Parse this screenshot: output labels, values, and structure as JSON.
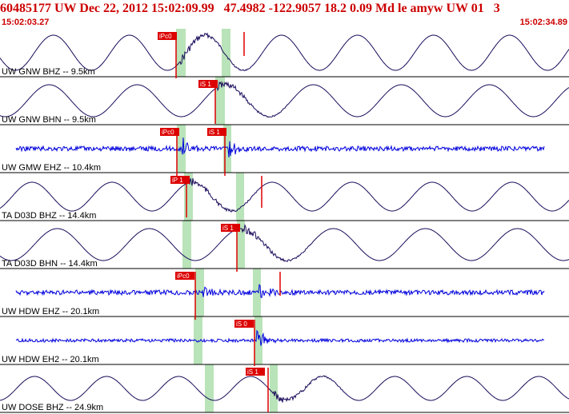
{
  "header": {
    "title": "60485177 UW Dec 22, 2012 15:02:09.99   47.4982 -122.9057 18.2 0.09 Md le amyw UW 01   3",
    "time_start": "15:02:03.27",
    "time_end": "15:02:34.89"
  },
  "colors": {
    "header_text": "#cc0000",
    "trace_dark": "#1a0a5a",
    "trace_blue": "#0000dd",
    "pick_red": "#dd0000",
    "window_green": "#b9e3b9",
    "separator": "#000000"
  },
  "traces": [
    {
      "label": "UW GNW BHZ -- 9.5km",
      "color": "dark",
      "picks": [
        {
          "text": "iPc0"
        },
        {
          "text": ""
        }
      ]
    },
    {
      "label": "UW GNW BHN -- 9.5km",
      "color": "dark",
      "picks": [
        {
          "text": "iS 1"
        }
      ]
    },
    {
      "label": "UW GMW EHZ -- 10.4km",
      "color": "blue",
      "picks": [
        {
          "text": "iPc0"
        },
        {
          "text": "iS 1"
        }
      ]
    },
    {
      "label": "TA D03D BHZ -- 14.4km",
      "color": "dark",
      "picks": [
        {
          "text": "iP 1"
        },
        {
          "text": ""
        }
      ]
    },
    {
      "label": "TA D03D BHN -- 14.4km",
      "color": "dark",
      "picks": [
        {
          "text": "iS 1"
        }
      ]
    },
    {
      "label": "UW HDW EHZ -- 20.1km",
      "color": "blue",
      "picks": [
        {
          "text": "iPc0"
        },
        {
          "text": ""
        }
      ]
    },
    {
      "label": "UW HDW EH2 -- 20.1km",
      "color": "blue",
      "picks": [
        {
          "text": "iS 0"
        }
      ]
    },
    {
      "label": "UW DOSE BHZ -- 24.9km",
      "color": "dark",
      "picks": [
        {
          "text": "iS 1"
        }
      ]
    }
  ]
}
